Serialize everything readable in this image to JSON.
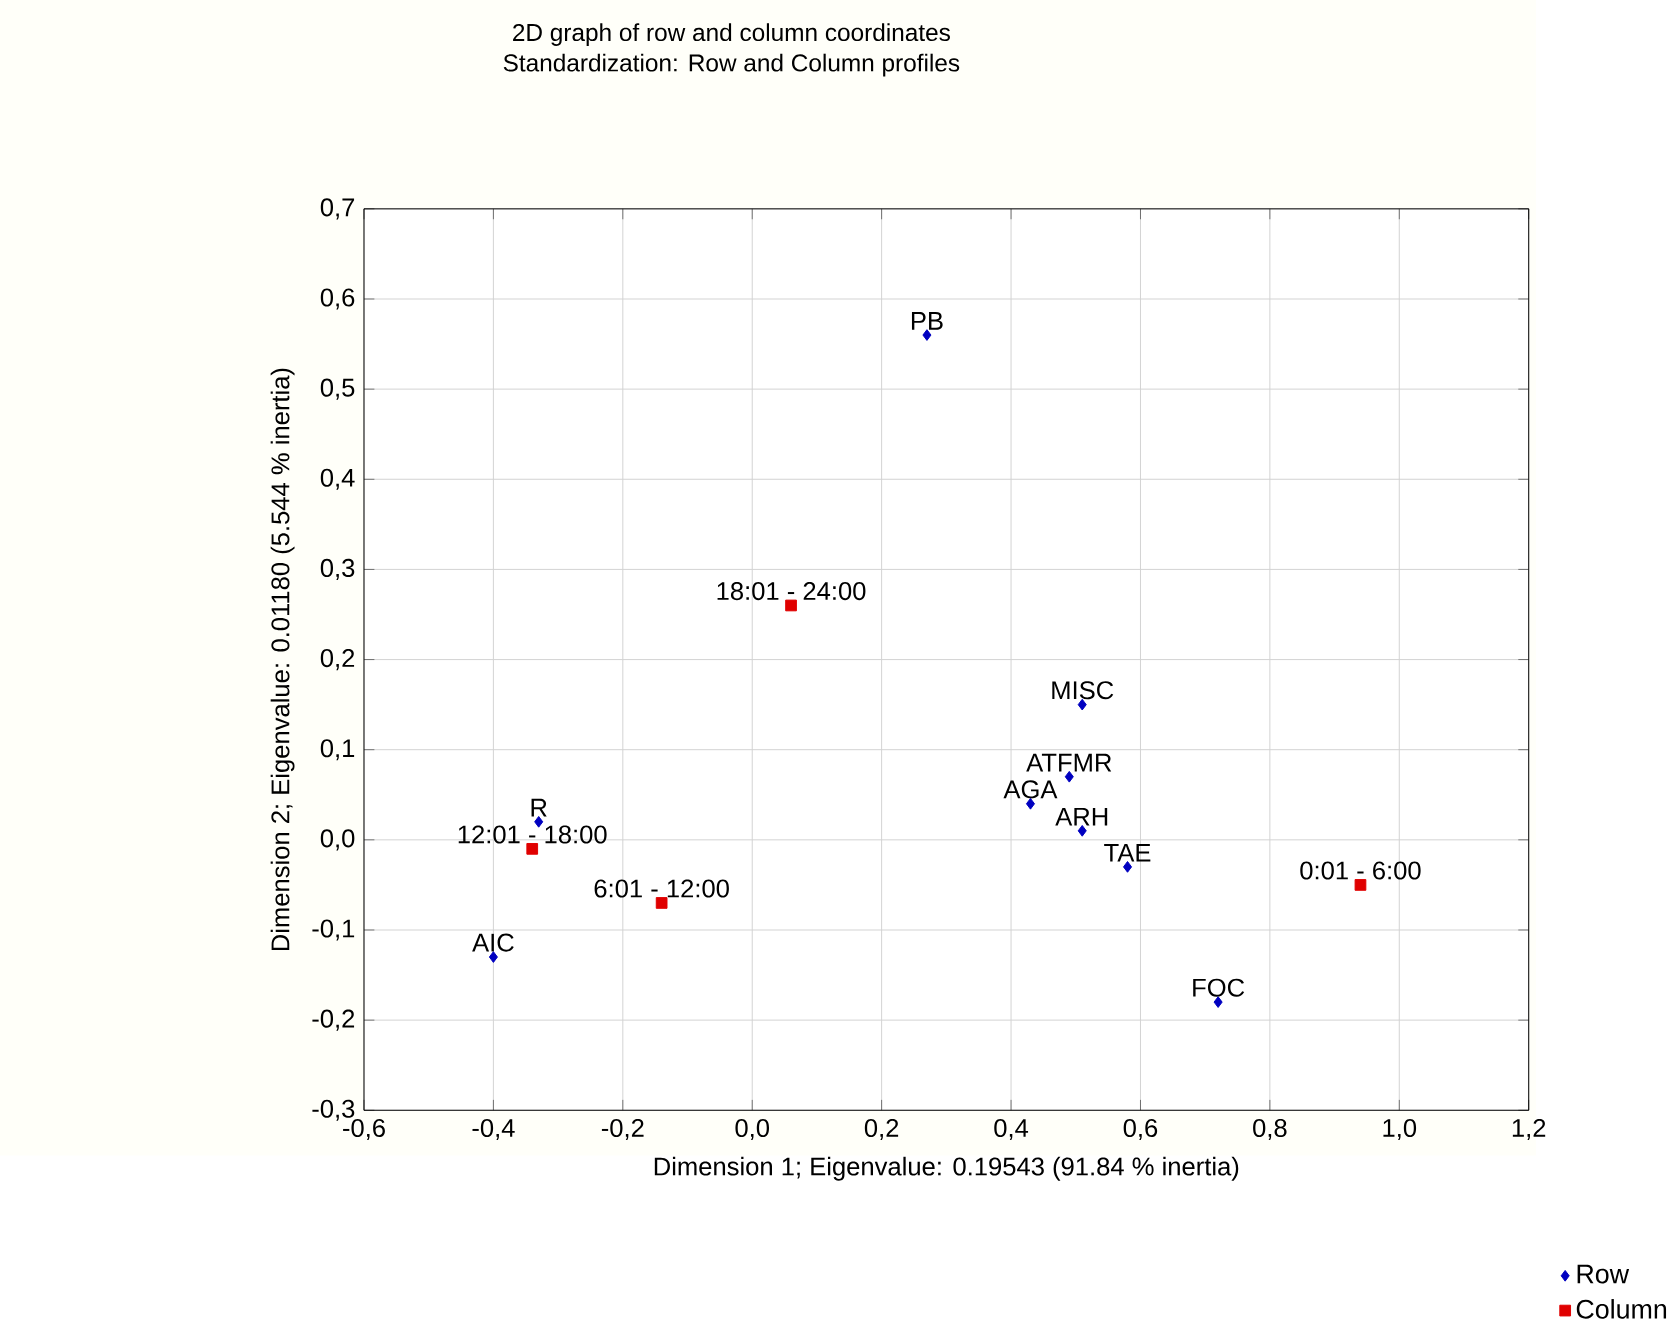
{
  "chart_data": {
    "type": "scatter",
    "title": "2D graph of row and column coordinates",
    "subtitle": "Standardization: Row and Column profiles",
    "xlabel": "Dimension 1; Eigenvalue: 0.19543 (91.84 % inertia)",
    "ylabel": "Dimension 2; Eigenvalue: 0.01180 (5.544 % inertia)",
    "xlim": [
      -0.6,
      1.2
    ],
    "ylim": [
      -0.3,
      0.7
    ],
    "xticks": [
      {
        "value": -0.6,
        "label": "-0,6"
      },
      {
        "value": -0.4,
        "label": "-0,4"
      },
      {
        "value": -0.2,
        "label": "-0,2"
      },
      {
        "value": 0,
        "label": "0,0"
      },
      {
        "value": 0.2,
        "label": "0,2"
      },
      {
        "value": 0.4,
        "label": "0,4"
      },
      {
        "value": 0.6,
        "label": "0,6"
      },
      {
        "value": 0.8,
        "label": "0,8"
      },
      {
        "value": 1.0,
        "label": "1,0"
      },
      {
        "value": 1.2,
        "label": "1,2"
      }
    ],
    "yticks": [
      {
        "value": -0.3,
        "label": "-0,3"
      },
      {
        "value": -0.2,
        "label": "-0,2"
      },
      {
        "value": -0.1,
        "label": "-0,1"
      },
      {
        "value": 0,
        "label": "0,0"
      },
      {
        "value": 0.1,
        "label": "0,1"
      },
      {
        "value": 0.2,
        "label": "0,2"
      },
      {
        "value": 0.3,
        "label": "0,3"
      },
      {
        "value": 0.4,
        "label": "0,4"
      },
      {
        "value": 0.5,
        "label": "0,5"
      },
      {
        "value": 0.6,
        "label": "0,6"
      },
      {
        "value": 0.7,
        "label": "0,7"
      }
    ],
    "grid": true,
    "legend": "bottom right",
    "series": [
      {
        "name": "Row",
        "color": "#0000c0",
        "marker": "diamond",
        "x": [
          0.27,
          0.51,
          0.49,
          0.43,
          0.51,
          0.58,
          0.72,
          -0.33,
          -0.4
        ],
        "values": [
          0.56,
          0.15,
          0.07,
          0.04,
          0.01,
          -0.03,
          -0.18,
          0.02,
          -0.13
        ]
      },
      {
        "name": "Column",
        "color": "#e00000",
        "marker": "square",
        "x": [
          0.06,
          0.94,
          -0.34,
          -0.14
        ],
        "values": [
          0.26,
          -0.05,
          -0.01,
          -0.07
        ]
      }
    ],
    "annotations": [
      {
        "text": "PB",
        "x": 0.27,
        "y": 0.56
      },
      {
        "text": "MISC",
        "x": 0.51,
        "y": 0.15
      },
      {
        "text": "ATFMR",
        "x": 0.49,
        "y": 0.07
      },
      {
        "text": "AGA",
        "x": 0.43,
        "y": 0.04
      },
      {
        "text": "ARH",
        "x": 0.51,
        "y": 0.01
      },
      {
        "text": "TAE",
        "x": 0.58,
        "y": -0.03
      },
      {
        "text": "FOC",
        "x": 0.72,
        "y": -0.18
      },
      {
        "text": "R",
        "x": -0.33,
        "y": 0.02
      },
      {
        "text": "AIC",
        "x": -0.4,
        "y": -0.13
      },
      {
        "text": "18:01 - 24:00",
        "x": 0.06,
        "y": 0.26
      },
      {
        "text": "0:01 - 6:00",
        "x": 0.94,
        "y": -0.05
      },
      {
        "text": "12:01 - 18:00",
        "x": -0.34,
        "y": -0.01
      },
      {
        "text": "6:01 - 12:00",
        "x": -0.14,
        "y": -0.07
      }
    ]
  }
}
